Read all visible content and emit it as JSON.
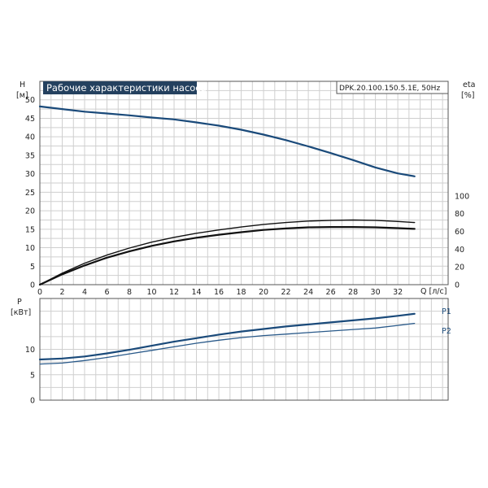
{
  "chart_data": [
    {
      "type": "line",
      "title": "Рабочие характеристики насоса",
      "subtitle": "DPK.20.100.150.5.1E, 50Hz",
      "xlabel": "Q [л/с]",
      "ylabel_left": "H",
      "ylabel_left_unit": "[м]",
      "ylabel_right": "eta",
      "ylabel_right_unit": "[%]",
      "xlim": [
        0,
        36.5
      ],
      "ylim_left": [
        0,
        55
      ],
      "ylim_right": [
        0,
        229
      ],
      "xticks": [
        "0",
        "2",
        "4",
        "6",
        "8",
        "10",
        "12",
        "14",
        "16",
        "18",
        "20",
        "22",
        "24",
        "26",
        "28",
        "30",
        "32"
      ],
      "yticks_left": [
        "0",
        "5",
        "10",
        "15",
        "20",
        "25",
        "30",
        "35",
        "40",
        "45",
        "50"
      ],
      "yticks_right": [
        "0",
        "20",
        "40",
        "60",
        "80",
        "100"
      ],
      "grid": true,
      "series": [
        {
          "name": "",
          "axis": "left",
          "color": "#1a4a7a",
          "x": [
            0,
            2,
            4,
            6,
            8,
            10,
            12,
            14,
            16,
            18,
            20,
            22,
            24,
            26,
            28,
            30,
            32,
            33.5
          ],
          "values": [
            48.2,
            47.5,
            46.8,
            46.3,
            45.8,
            45.2,
            44.7,
            43.9,
            43.0,
            41.9,
            40.6,
            39.1,
            37.4,
            35.6,
            33.7,
            31.7,
            30.1,
            29.3
          ]
        },
        {
          "name": "",
          "axis": "left",
          "color": "#111111",
          "x": [
            0,
            2,
            4,
            6,
            8,
            10,
            12,
            14,
            16,
            18,
            20,
            22,
            24,
            26,
            28,
            30,
            32,
            33.5
          ],
          "values": [
            0,
            3.1,
            5.8,
            8.0,
            9.9,
            11.5,
            12.8,
            13.9,
            14.8,
            15.6,
            16.3,
            16.8,
            17.2,
            17.4,
            17.5,
            17.4,
            17.1,
            16.8
          ]
        },
        {
          "name": "",
          "axis": "left",
          "color": "#111111",
          "x": [
            0,
            2,
            4,
            6,
            8,
            10,
            12,
            14,
            16,
            18,
            20,
            22,
            24,
            26,
            28,
            30,
            32,
            33.5
          ],
          "values": [
            0,
            2.8,
            5.2,
            7.3,
            9.0,
            10.5,
            11.7,
            12.7,
            13.5,
            14.2,
            14.8,
            15.2,
            15.5,
            15.6,
            15.6,
            15.5,
            15.3,
            15.1
          ]
        }
      ]
    },
    {
      "type": "line",
      "ylabel": "P",
      "ylabel_unit": "[кВт]",
      "xlim": [
        0,
        36.5
      ],
      "ylim": [
        0,
        20
      ],
      "yticks": [
        "0",
        "5",
        "10"
      ],
      "grid": true,
      "series": [
        {
          "name": "P1",
          "color": "#1a4a7a",
          "x": [
            0,
            2,
            4,
            6,
            8,
            10,
            12,
            14,
            16,
            18,
            20,
            22,
            24,
            26,
            28,
            30,
            32,
            33.5
          ],
          "values": [
            8.0,
            8.2,
            8.6,
            9.2,
            9.9,
            10.7,
            11.5,
            12.2,
            12.9,
            13.5,
            14.0,
            14.5,
            14.9,
            15.3,
            15.7,
            16.1,
            16.6,
            17.0
          ]
        },
        {
          "name": "P2",
          "color": "#2a5a8a",
          "x": [
            0,
            2,
            4,
            6,
            8,
            10,
            12,
            14,
            16,
            18,
            20,
            22,
            24,
            26,
            28,
            30,
            32,
            33.5
          ],
          "values": [
            7.1,
            7.3,
            7.8,
            8.4,
            9.1,
            9.8,
            10.5,
            11.2,
            11.8,
            12.3,
            12.7,
            13.0,
            13.3,
            13.6,
            13.9,
            14.2,
            14.7,
            15.1
          ]
        }
      ]
    }
  ]
}
